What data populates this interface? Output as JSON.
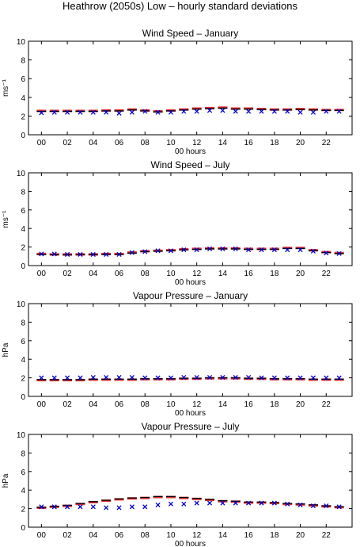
{
  "figure_title": "Heathrow (2050s) Low – hourly standard deviations",
  "colors": {
    "observed": "#0000cc",
    "mean": "#000000",
    "band": "#e53030",
    "axis": "#000000"
  },
  "chart_data": [
    {
      "type": "scatter",
      "title": "Wind Speed – January",
      "xlabel": "00 hours",
      "ylabel": "ms⁻¹",
      "ylim": [
        0,
        10
      ],
      "yticks": [
        "0",
        "2",
        "4",
        "6",
        "8",
        "10"
      ],
      "xticks": [
        "00",
        "02",
        "04",
        "06",
        "08",
        "10",
        "12",
        "14",
        "16",
        "18",
        "20",
        "22"
      ],
      "x": [
        0,
        1,
        2,
        3,
        4,
        5,
        6,
        7,
        8,
        9,
        10,
        11,
        12,
        13,
        14,
        15,
        16,
        17,
        18,
        19,
        20,
        21,
        22,
        23
      ],
      "series": [
        {
          "marker": "horizontal-bar",
          "values": [
            2.5,
            2.5,
            2.5,
            2.5,
            2.5,
            2.55,
            2.55,
            2.65,
            2.55,
            2.45,
            2.55,
            2.65,
            2.75,
            2.8,
            2.85,
            2.75,
            2.75,
            2.7,
            2.65,
            2.65,
            2.7,
            2.65,
            2.6,
            2.6
          ]
        },
        {
          "marker": "red-band",
          "values": [
            2.55,
            2.55,
            2.55,
            2.55,
            2.55,
            2.6,
            2.6,
            2.7,
            2.6,
            2.5,
            2.6,
            2.7,
            2.8,
            2.85,
            2.9,
            2.8,
            2.8,
            2.75,
            2.7,
            2.7,
            2.75,
            2.7,
            2.65,
            2.65
          ]
        },
        {
          "marker": "cross",
          "values": [
            2.35,
            2.4,
            2.4,
            2.4,
            2.4,
            2.4,
            2.3,
            2.4,
            2.5,
            2.4,
            2.4,
            2.5,
            2.5,
            2.6,
            2.6,
            2.5,
            2.5,
            2.5,
            2.5,
            2.5,
            2.4,
            2.4,
            2.5,
            2.5
          ]
        }
      ]
    },
    {
      "type": "scatter",
      "title": "Wind Speed – July",
      "xlabel": "00 hours",
      "ylabel": "ms⁻¹",
      "ylim": [
        0,
        10
      ],
      "yticks": [
        "0",
        "2",
        "4",
        "6",
        "8",
        "10"
      ],
      "xticks": [
        "00",
        "02",
        "04",
        "06",
        "08",
        "10",
        "12",
        "14",
        "16",
        "18",
        "20",
        "22"
      ],
      "x": [
        0,
        1,
        2,
        3,
        4,
        5,
        6,
        7,
        8,
        9,
        10,
        11,
        12,
        13,
        14,
        15,
        16,
        17,
        18,
        19,
        20,
        21,
        22,
        23
      ],
      "series": [
        {
          "marker": "horizontal-bar",
          "values": [
            1.2,
            1.2,
            1.15,
            1.2,
            1.2,
            1.2,
            1.2,
            1.35,
            1.5,
            1.55,
            1.6,
            1.7,
            1.75,
            1.8,
            1.8,
            1.8,
            1.75,
            1.75,
            1.75,
            1.85,
            1.85,
            1.6,
            1.4,
            1.3
          ]
        },
        {
          "marker": "red-band",
          "values": [
            1.25,
            1.2,
            1.2,
            1.2,
            1.2,
            1.25,
            1.25,
            1.4,
            1.55,
            1.6,
            1.65,
            1.75,
            1.8,
            1.85,
            1.85,
            1.85,
            1.8,
            1.8,
            1.8,
            1.9,
            1.9,
            1.65,
            1.45,
            1.35
          ]
        },
        {
          "marker": "cross",
          "values": [
            1.25,
            1.25,
            1.2,
            1.2,
            1.2,
            1.2,
            1.2,
            1.4,
            1.5,
            1.6,
            1.6,
            1.7,
            1.7,
            1.8,
            1.8,
            1.8,
            1.7,
            1.7,
            1.7,
            1.7,
            1.7,
            1.55,
            1.35,
            1.3
          ]
        }
      ]
    },
    {
      "type": "scatter",
      "title": "Vapour Pressure – January",
      "xlabel": "00 hours",
      "ylabel": "hPa",
      "ylim": [
        0,
        10
      ],
      "yticks": [
        "0",
        "2",
        "4",
        "6",
        "8",
        "10"
      ],
      "xticks": [
        "00",
        "02",
        "04",
        "06",
        "08",
        "10",
        "12",
        "14",
        "16",
        "18",
        "20",
        "22"
      ],
      "x": [
        0,
        1,
        2,
        3,
        4,
        5,
        6,
        7,
        8,
        9,
        10,
        11,
        12,
        13,
        14,
        15,
        16,
        17,
        18,
        19,
        20,
        21,
        22,
        23
      ],
      "series": [
        {
          "marker": "horizontal-bar",
          "values": [
            1.8,
            1.8,
            1.8,
            1.8,
            1.85,
            1.85,
            1.85,
            1.85,
            1.9,
            1.9,
            1.9,
            1.95,
            1.95,
            2.0,
            2.0,
            2.0,
            1.95,
            1.95,
            1.9,
            1.9,
            1.9,
            1.85,
            1.85,
            1.85
          ]
        },
        {
          "marker": "red-band",
          "values": [
            1.75,
            1.75,
            1.75,
            1.75,
            1.8,
            1.8,
            1.8,
            1.8,
            1.85,
            1.85,
            1.85,
            1.9,
            1.9,
            1.95,
            1.95,
            1.95,
            1.9,
            1.9,
            1.85,
            1.85,
            1.85,
            1.8,
            1.8,
            1.8
          ]
        },
        {
          "marker": "cross",
          "values": [
            2.0,
            2.0,
            2.0,
            2.0,
            2.05,
            2.05,
            2.05,
            2.05,
            2.0,
            2.0,
            2.0,
            2.05,
            2.05,
            2.05,
            2.05,
            2.05,
            2.05,
            2.0,
            2.0,
            2.0,
            2.0,
            2.0,
            2.0,
            2.0
          ]
        }
      ]
    },
    {
      "type": "scatter",
      "title": "Vapour Pressure – July",
      "xlabel": "00 hours",
      "ylabel": "hPa",
      "ylim": [
        0,
        10
      ],
      "yticks": [
        "0",
        "2",
        "4",
        "6",
        "8",
        "10"
      ],
      "xticks": [
        "00",
        "02",
        "04",
        "06",
        "08",
        "10",
        "12",
        "14",
        "16",
        "18",
        "20",
        "22"
      ],
      "x": [
        0,
        1,
        2,
        3,
        4,
        5,
        6,
        7,
        8,
        9,
        10,
        11,
        12,
        13,
        14,
        15,
        16,
        17,
        18,
        19,
        20,
        21,
        22,
        23
      ],
      "series": [
        {
          "marker": "horizontal-bar",
          "values": [
            2.15,
            2.25,
            2.35,
            2.55,
            2.75,
            2.9,
            3.05,
            3.15,
            3.2,
            3.3,
            3.3,
            3.2,
            3.1,
            3.0,
            2.85,
            2.8,
            2.7,
            2.7,
            2.65,
            2.55,
            2.5,
            2.4,
            2.3,
            2.2
          ]
        },
        {
          "marker": "red-band",
          "values": [
            2.1,
            2.2,
            2.3,
            2.5,
            2.7,
            2.85,
            3.0,
            3.1,
            3.15,
            3.25,
            3.25,
            3.15,
            3.05,
            2.95,
            2.8,
            2.75,
            2.65,
            2.65,
            2.6,
            2.5,
            2.45,
            2.35,
            2.25,
            2.15
          ]
        },
        {
          "marker": "cross",
          "values": [
            2.2,
            2.2,
            2.2,
            2.2,
            2.2,
            2.1,
            2.1,
            2.2,
            2.2,
            2.4,
            2.5,
            2.5,
            2.6,
            2.6,
            2.6,
            2.6,
            2.6,
            2.6,
            2.6,
            2.5,
            2.4,
            2.3,
            2.3,
            2.2
          ]
        }
      ]
    }
  ]
}
